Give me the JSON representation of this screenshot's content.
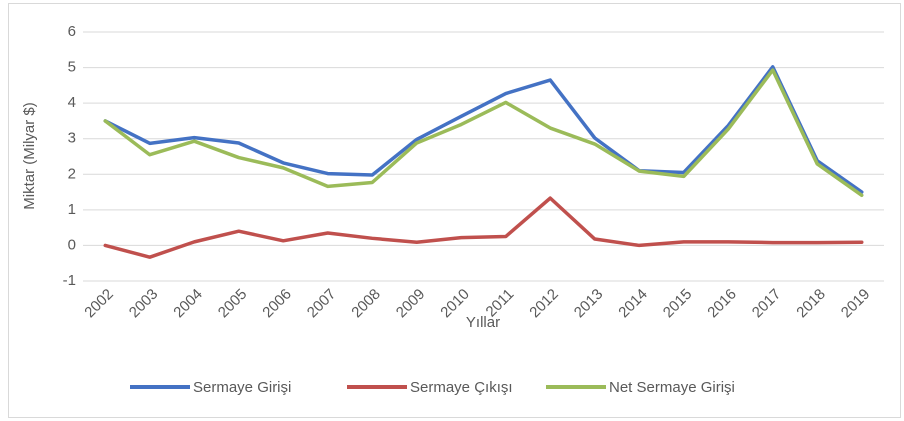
{
  "chart_data": {
    "type": "line",
    "x_label": "Yıllar",
    "y_label": "Miktar (Milyar $)",
    "categories": [
      "2002",
      "2003",
      "2004",
      "2005",
      "2006",
      "2007",
      "2008",
      "2009",
      "2010",
      "2011",
      "2012",
      "2013",
      "2014",
      "2015",
      "2016",
      "2017",
      "2018",
      "2019"
    ],
    "series": [
      {
        "name": "Sermaye Girişi",
        "color": "#4472c4",
        "values": [
          3.5,
          2.87,
          3.03,
          2.88,
          2.32,
          2.02,
          1.98,
          2.98,
          3.63,
          4.27,
          4.65,
          3.02,
          2.1,
          2.05,
          3.37,
          5.02,
          2.38,
          1.5
        ]
      },
      {
        "name": "Sermaye Çıkışı",
        "color": "#c0504d",
        "values": [
          0.0,
          -0.33,
          0.1,
          0.4,
          0.13,
          0.35,
          0.2,
          0.09,
          0.22,
          0.25,
          1.33,
          0.18,
          0.0,
          0.1,
          0.1,
          0.08,
          0.08,
          0.09
        ]
      },
      {
        "name": "Net Sermaye Girişi",
        "color": "#9bbb59",
        "values": [
          3.5,
          2.55,
          2.93,
          2.47,
          2.18,
          1.66,
          1.77,
          2.88,
          3.4,
          4.02,
          3.3,
          2.85,
          2.09,
          1.94,
          3.27,
          4.93,
          2.29,
          1.41
        ]
      }
    ],
    "ylim": [
      -1,
      6
    ],
    "yticks": [
      -1,
      0,
      1,
      2,
      3,
      4,
      5,
      6
    ],
    "grid": true,
    "legend": "bottom"
  }
}
